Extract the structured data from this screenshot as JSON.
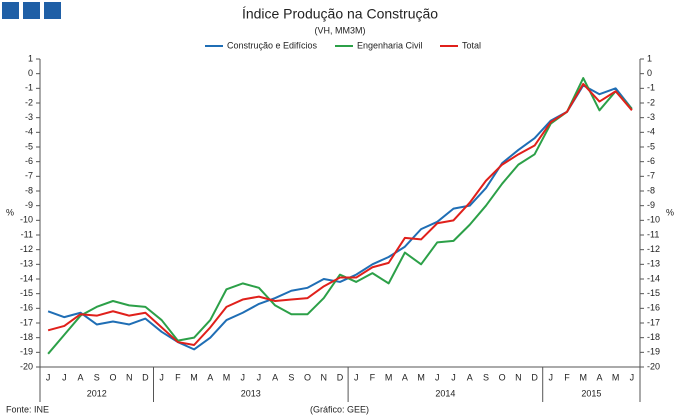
{
  "chart_data": {
    "type": "line",
    "title": "Índice Produção na Construção",
    "subtitle": "(VH, MM3M)",
    "y_label": "%",
    "y2_label": "%",
    "source": "Fonte: INE",
    "credit": "(Gráfico: GEE)",
    "legend": "top",
    "categories": [
      "J",
      "J",
      "A",
      "S",
      "O",
      "N",
      "D",
      "J",
      "F",
      "M",
      "A",
      "M",
      "J",
      "J",
      "A",
      "S",
      "O",
      "N",
      "D",
      "J",
      "F",
      "M",
      "A",
      "M",
      "J",
      "J",
      "A",
      "S",
      "O",
      "N",
      "D",
      "J",
      "F",
      "M",
      "A",
      "M",
      "J"
    ],
    "years": [
      "2012",
      "2013",
      "2014",
      "2015"
    ],
    "ylim": [
      -20,
      1
    ],
    "yticks": [
      1,
      0,
      -1,
      -2,
      -3,
      -4,
      -5,
      -6,
      -7,
      -8,
      -9,
      -10,
      -11,
      -12,
      -13,
      -14,
      -15,
      -16,
      -17,
      -18,
      -19,
      -20
    ],
    "series": [
      {
        "name": "Construção e Edifícios",
        "color": "#1f6eb5",
        "values": [
          -16.2,
          -16.6,
          -16.3,
          -17.1,
          -16.9,
          -17.1,
          -16.7,
          -17.6,
          -18.3,
          -18.8,
          -18.0,
          -16.8,
          -16.3,
          -15.7,
          -15.3,
          -14.8,
          -14.6,
          -14.0,
          -14.2,
          -13.7,
          -13.0,
          -12.5,
          -11.8,
          -10.6,
          -10.1,
          -9.2,
          -9.0,
          -7.8,
          -6.1,
          -5.2,
          -4.4,
          -3.2,
          -2.6,
          -0.8,
          -1.4,
          -1.0,
          -2.4
        ]
      },
      {
        "name": "Engenharia Civil",
        "color": "#2ca048",
        "values": [
          -19.1,
          -17.8,
          -16.5,
          -15.9,
          -15.5,
          -15.8,
          -15.9,
          -16.8,
          -18.2,
          -18.0,
          -16.8,
          -14.7,
          -14.3,
          -14.6,
          -15.8,
          -16.4,
          -16.4,
          -15.3,
          -13.7,
          -14.2,
          -13.6,
          -14.3,
          -12.2,
          -13.0,
          -11.5,
          -11.4,
          -10.3,
          -9.0,
          -7.5,
          -6.2,
          -5.5,
          -3.4,
          -2.6,
          -0.3,
          -2.5,
          -1.2,
          -2.4
        ]
      },
      {
        "name": "Total",
        "color": "#e0201b",
        "values": [
          -17.5,
          -17.2,
          -16.4,
          -16.5,
          -16.2,
          -16.5,
          -16.3,
          -17.3,
          -18.3,
          -18.5,
          -17.3,
          -15.9,
          -15.4,
          -15.2,
          -15.5,
          -15.4,
          -15.3,
          -14.5,
          -13.9,
          -13.9,
          -13.2,
          -12.9,
          -11.2,
          -11.3,
          -10.2,
          -10.0,
          -8.8,
          -7.3,
          -6.2,
          -5.5,
          -4.9,
          -3.3,
          -2.6,
          -0.7,
          -1.9,
          -1.2,
          -2.5
        ]
      }
    ]
  }
}
